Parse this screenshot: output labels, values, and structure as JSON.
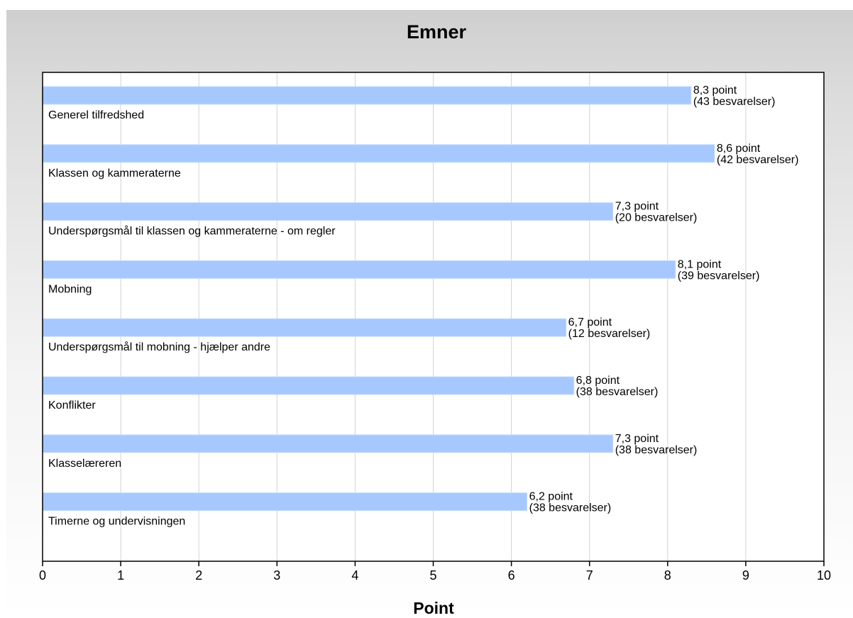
{
  "chart_data": {
    "type": "bar",
    "orientation": "horizontal",
    "title": "Emner",
    "xlabel": "Point",
    "ylabel": "",
    "xlim": [
      0,
      10
    ],
    "x_ticks": [
      "0",
      "1",
      "2",
      "3",
      "4",
      "5",
      "6",
      "7",
      "8",
      "9",
      "10"
    ],
    "grid": "vertical",
    "bar_color": "#a6c8ff",
    "categories": [
      "Generel tilfredshed",
      "Klassen og kammeraterne",
      "Underspørgsmål til klassen og kammeraterne - om regler",
      "Mobning",
      "Underspørgsmål til mobning - hjælper andre",
      "Konflikter",
      "Klasselæreren",
      "Timerne og undervisningen"
    ],
    "values": [
      8.3,
      8.6,
      7.3,
      8.1,
      6.7,
      6.8,
      7.3,
      6.2
    ],
    "value_labels": [
      [
        "8,3 point",
        "(43 besvarelser)"
      ],
      [
        "8,6 point",
        "(42 besvarelser)"
      ],
      [
        "7,3 point",
        "(20 besvarelser)"
      ],
      [
        "8,1 point",
        "(39 besvarelser)"
      ],
      [
        "6,7 point",
        "(12 besvarelser)"
      ],
      [
        "6,8 point",
        "(38 besvarelser)"
      ],
      [
        "7,3 point",
        "(38 besvarelser)"
      ],
      [
        "6,2 point",
        "(38 besvarelser)"
      ]
    ]
  }
}
